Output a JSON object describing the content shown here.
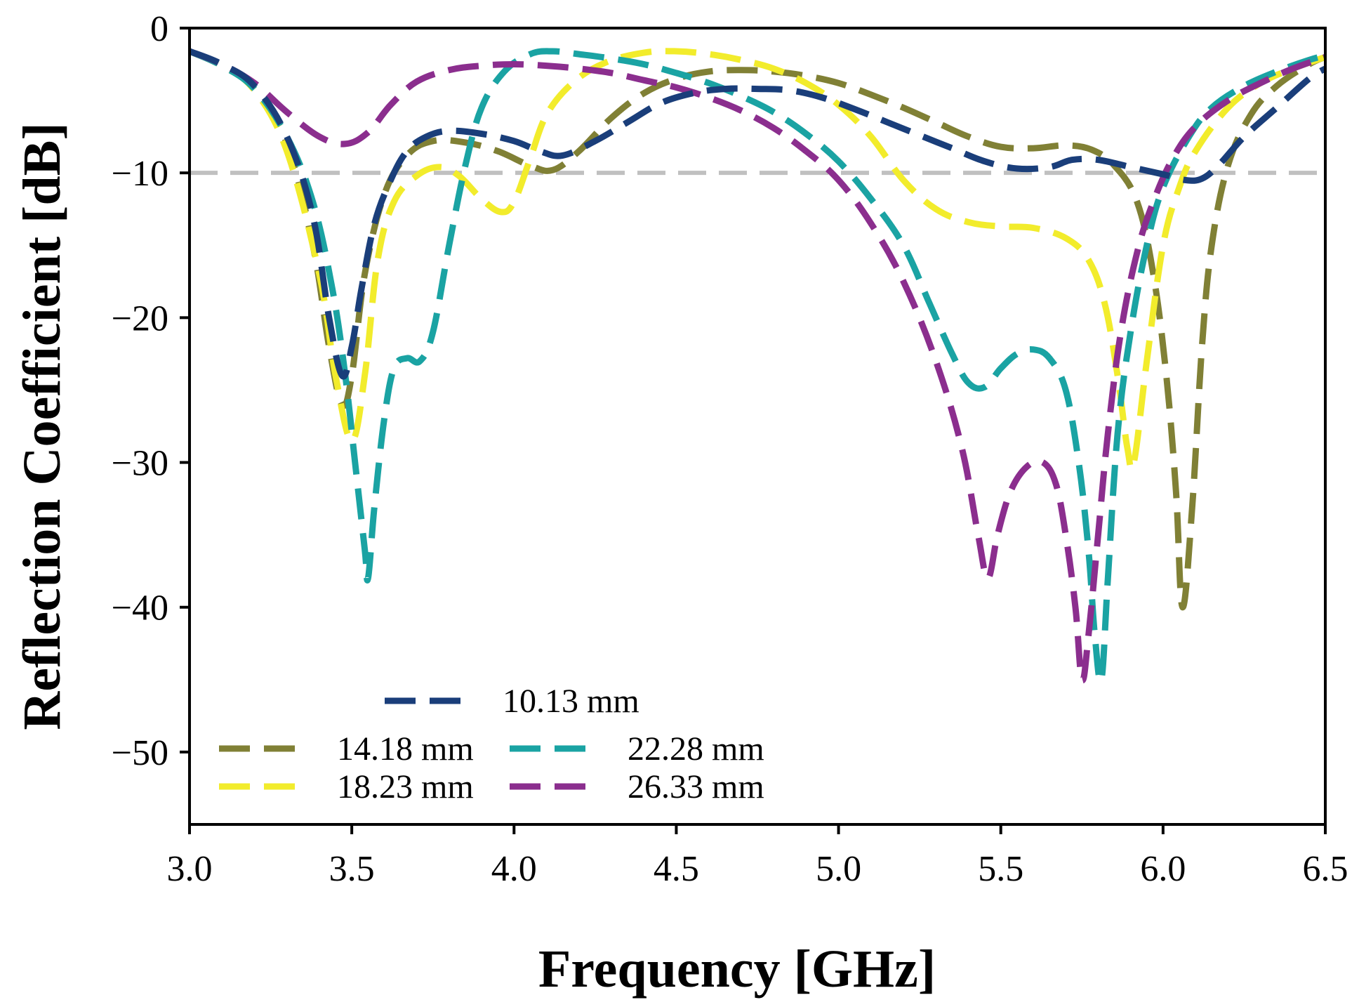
{
  "chart_data": {
    "type": "line",
    "title": "",
    "xlabel": "Frequency [GHz]",
    "ylabel": "Reflection Coefficient [dB]",
    "xlim": [
      3.0,
      6.5
    ],
    "ylim": [
      -55,
      0
    ],
    "x_ticks": [
      3.0,
      3.5,
      4.0,
      4.5,
      5.0,
      5.5,
      6.0,
      6.5
    ],
    "x_tick_labels": [
      "3.0",
      "3.5",
      "4.0",
      "4.5",
      "5.0",
      "5.5",
      "6.0",
      "6.5"
    ],
    "y_ticks": [
      0,
      -10,
      -20,
      -30,
      -40,
      -50
    ],
    "y_tick_labels": [
      "0",
      "−10",
      "−20",
      "−30",
      "−40",
      "−50"
    ],
    "grid": false,
    "legend_position": "bottom-left",
    "reference_line": {
      "y": -10,
      "color": "#c0c0c0",
      "style": "dashed"
    },
    "series": [
      {
        "name": "10.13 mm",
        "color": "#1a3e7a",
        "points": [
          [
            3.0,
            -1.6
          ],
          [
            3.1,
            -2.5
          ],
          [
            3.2,
            -4
          ],
          [
            3.3,
            -7.5
          ],
          [
            3.38,
            -13
          ],
          [
            3.43,
            -20
          ],
          [
            3.47,
            -24
          ],
          [
            3.5,
            -22
          ],
          [
            3.53,
            -18
          ],
          [
            3.57,
            -13.5
          ],
          [
            3.62,
            -10.5
          ],
          [
            3.67,
            -8.5
          ],
          [
            3.73,
            -7.5
          ],
          [
            3.8,
            -7.1
          ],
          [
            3.9,
            -7.3
          ],
          [
            4.0,
            -7.8
          ],
          [
            4.08,
            -8.5
          ],
          [
            4.15,
            -8.8
          ],
          [
            4.25,
            -7.8
          ],
          [
            4.35,
            -6.5
          ],
          [
            4.45,
            -5.2
          ],
          [
            4.55,
            -4.5
          ],
          [
            4.65,
            -4.2
          ],
          [
            4.75,
            -4.2
          ],
          [
            4.85,
            -4.3
          ],
          [
            4.95,
            -4.8
          ],
          [
            5.05,
            -5.6
          ],
          [
            5.15,
            -6.5
          ],
          [
            5.25,
            -7.4
          ],
          [
            5.35,
            -8.3
          ],
          [
            5.45,
            -9.2
          ],
          [
            5.55,
            -9.7
          ],
          [
            5.65,
            -9.6
          ],
          [
            5.72,
            -9.1
          ],
          [
            5.8,
            -9.1
          ],
          [
            5.9,
            -9.6
          ],
          [
            6.0,
            -10.1
          ],
          [
            6.07,
            -10.5
          ],
          [
            6.12,
            -10.4
          ],
          [
            6.17,
            -9.5
          ],
          [
            6.25,
            -7.5
          ],
          [
            6.35,
            -5.5
          ],
          [
            6.45,
            -3.5
          ],
          [
            6.5,
            -2.8
          ]
        ]
      },
      {
        "name": "14.18 mm",
        "color": "#808035",
        "points": [
          [
            3.0,
            -1.6
          ],
          [
            3.1,
            -2.6
          ],
          [
            3.2,
            -4.2
          ],
          [
            3.3,
            -8
          ],
          [
            3.38,
            -15
          ],
          [
            3.43,
            -22
          ],
          [
            3.47,
            -26
          ],
          [
            3.5,
            -24
          ],
          [
            3.54,
            -17
          ],
          [
            3.6,
            -11.5
          ],
          [
            3.67,
            -8.8
          ],
          [
            3.75,
            -7.8
          ],
          [
            3.85,
            -7.9
          ],
          [
            3.95,
            -8.5
          ],
          [
            4.05,
            -9.5
          ],
          [
            4.12,
            -9.8
          ],
          [
            4.2,
            -8.5
          ],
          [
            4.3,
            -6.2
          ],
          [
            4.4,
            -4.5
          ],
          [
            4.5,
            -3.5
          ],
          [
            4.6,
            -3.0
          ],
          [
            4.7,
            -2.9
          ],
          [
            4.8,
            -3.0
          ],
          [
            4.9,
            -3.3
          ],
          [
            5.0,
            -3.8
          ],
          [
            5.1,
            -4.6
          ],
          [
            5.2,
            -5.5
          ],
          [
            5.3,
            -6.5
          ],
          [
            5.4,
            -7.5
          ],
          [
            5.5,
            -8.2
          ],
          [
            5.6,
            -8.3
          ],
          [
            5.7,
            -8.1
          ],
          [
            5.78,
            -8.4
          ],
          [
            5.85,
            -9.5
          ],
          [
            5.92,
            -12
          ],
          [
            5.97,
            -17
          ],
          [
            6.01,
            -24
          ],
          [
            6.04,
            -32
          ],
          [
            6.06,
            -40
          ],
          [
            6.09,
            -33
          ],
          [
            6.12,
            -22
          ],
          [
            6.15,
            -15
          ],
          [
            6.2,
            -9.5
          ],
          [
            6.27,
            -6
          ],
          [
            6.35,
            -4
          ],
          [
            6.45,
            -2.5
          ],
          [
            6.5,
            -2.0
          ]
        ]
      },
      {
        "name": "18.23 mm",
        "color": "#f2ec2c",
        "points": [
          [
            3.0,
            -1.6
          ],
          [
            3.1,
            -2.6
          ],
          [
            3.2,
            -4.3
          ],
          [
            3.3,
            -8.5
          ],
          [
            3.4,
            -17
          ],
          [
            3.45,
            -24
          ],
          [
            3.5,
            -28.5
          ],
          [
            3.54,
            -24
          ],
          [
            3.58,
            -16
          ],
          [
            3.63,
            -12
          ],
          [
            3.7,
            -10.2
          ],
          [
            3.77,
            -9.6
          ],
          [
            3.83,
            -10.2
          ],
          [
            3.9,
            -11.8
          ],
          [
            3.96,
            -12.7
          ],
          [
            4.0,
            -12
          ],
          [
            4.05,
            -9
          ],
          [
            4.1,
            -6
          ],
          [
            4.18,
            -3.8
          ],
          [
            4.28,
            -2.4
          ],
          [
            4.4,
            -1.7
          ],
          [
            4.5,
            -1.6
          ],
          [
            4.6,
            -1.8
          ],
          [
            4.7,
            -2.2
          ],
          [
            4.8,
            -2.8
          ],
          [
            4.9,
            -3.8
          ],
          [
            5.0,
            -5.3
          ],
          [
            5.1,
            -7.5
          ],
          [
            5.2,
            -10.5
          ],
          [
            5.3,
            -12.5
          ],
          [
            5.4,
            -13.4
          ],
          [
            5.5,
            -13.7
          ],
          [
            5.6,
            -13.8
          ],
          [
            5.7,
            -14.5
          ],
          [
            5.77,
            -16
          ],
          [
            5.82,
            -19
          ],
          [
            5.86,
            -24
          ],
          [
            5.89,
            -29
          ],
          [
            5.91,
            -30
          ],
          [
            5.95,
            -23
          ],
          [
            6.0,
            -15
          ],
          [
            6.05,
            -11
          ],
          [
            6.1,
            -8.5
          ],
          [
            6.2,
            -5.5
          ],
          [
            6.3,
            -3.8
          ],
          [
            6.4,
            -2.8
          ],
          [
            6.5,
            -2.0
          ]
        ]
      },
      {
        "name": "22.28 mm",
        "color": "#1aa3a3",
        "points": [
          [
            3.0,
            -1.6
          ],
          [
            3.1,
            -2.6
          ],
          [
            3.2,
            -4.2
          ],
          [
            3.3,
            -7.5
          ],
          [
            3.38,
            -12
          ],
          [
            3.44,
            -18
          ],
          [
            3.48,
            -24
          ],
          [
            3.51,
            -30
          ],
          [
            3.54,
            -36
          ],
          [
            3.55,
            -38
          ],
          [
            3.57,
            -33
          ],
          [
            3.6,
            -27
          ],
          [
            3.63,
            -23.5
          ],
          [
            3.67,
            -22.8
          ],
          [
            3.71,
            -23
          ],
          [
            3.75,
            -21
          ],
          [
            3.8,
            -15
          ],
          [
            3.85,
            -9.5
          ],
          [
            3.9,
            -5.5
          ],
          [
            3.97,
            -3
          ],
          [
            4.05,
            -1.8
          ],
          [
            4.12,
            -1.6
          ],
          [
            4.2,
            -1.8
          ],
          [
            4.3,
            -2.1
          ],
          [
            4.4,
            -2.5
          ],
          [
            4.5,
            -3.1
          ],
          [
            4.6,
            -3.8
          ],
          [
            4.7,
            -4.7
          ],
          [
            4.8,
            -5.8
          ],
          [
            4.9,
            -7.3
          ],
          [
            5.0,
            -9.2
          ],
          [
            5.1,
            -11.8
          ],
          [
            5.2,
            -15
          ],
          [
            5.28,
            -19
          ],
          [
            5.35,
            -22.5
          ],
          [
            5.4,
            -24.5
          ],
          [
            5.45,
            -24.8
          ],
          [
            5.5,
            -23.5
          ],
          [
            5.55,
            -22.5
          ],
          [
            5.6,
            -22.2
          ],
          [
            5.65,
            -22.8
          ],
          [
            5.7,
            -25
          ],
          [
            5.74,
            -30
          ],
          [
            5.77,
            -36
          ],
          [
            5.79,
            -42
          ],
          [
            5.81,
            -45
          ],
          [
            5.83,
            -38
          ],
          [
            5.86,
            -28
          ],
          [
            5.9,
            -21
          ],
          [
            5.95,
            -15
          ],
          [
            6.0,
            -11
          ],
          [
            6.08,
            -7.5
          ],
          [
            6.15,
            -5.5
          ],
          [
            6.25,
            -4
          ],
          [
            6.35,
            -3
          ],
          [
            6.45,
            -2.2
          ],
          [
            6.5,
            -1.9
          ]
        ]
      },
      {
        "name": "26.33 mm",
        "color": "#8b2e8e",
        "points": [
          [
            3.0,
            -1.6
          ],
          [
            3.1,
            -2.5
          ],
          [
            3.2,
            -3.8
          ],
          [
            3.3,
            -5.8
          ],
          [
            3.4,
            -7.5
          ],
          [
            3.48,
            -8.0
          ],
          [
            3.55,
            -7.2
          ],
          [
            3.62,
            -5.3
          ],
          [
            3.7,
            -3.7
          ],
          [
            3.8,
            -2.9
          ],
          [
            3.9,
            -2.6
          ],
          [
            4.0,
            -2.5
          ],
          [
            4.1,
            -2.6
          ],
          [
            4.2,
            -2.8
          ],
          [
            4.3,
            -3.1
          ],
          [
            4.4,
            -3.6
          ],
          [
            4.5,
            -4.1
          ],
          [
            4.6,
            -4.8
          ],
          [
            4.7,
            -5.7
          ],
          [
            4.8,
            -6.9
          ],
          [
            4.9,
            -8.5
          ],
          [
            5.0,
            -10.5
          ],
          [
            5.1,
            -13.5
          ],
          [
            5.2,
            -17.5
          ],
          [
            5.3,
            -23
          ],
          [
            5.38,
            -29
          ],
          [
            5.43,
            -35
          ],
          [
            5.46,
            -38
          ],
          [
            5.49,
            -35
          ],
          [
            5.53,
            -32
          ],
          [
            5.58,
            -30.3
          ],
          [
            5.63,
            -30
          ],
          [
            5.67,
            -31.5
          ],
          [
            5.7,
            -35
          ],
          [
            5.73,
            -40
          ],
          [
            5.75,
            -45
          ],
          [
            5.77,
            -42
          ],
          [
            5.8,
            -35
          ],
          [
            5.83,
            -28
          ],
          [
            5.87,
            -21
          ],
          [
            5.92,
            -15.5
          ],
          [
            5.97,
            -12
          ],
          [
            6.03,
            -9
          ],
          [
            6.1,
            -6.8
          ],
          [
            6.2,
            -5
          ],
          [
            6.3,
            -3.8
          ],
          [
            6.4,
            -2.8
          ],
          [
            6.5,
            -2.0
          ]
        ]
      }
    ],
    "legend": [
      {
        "series": 0,
        "label": "10.13 mm"
      },
      {
        "series": 1,
        "label": "14.18 mm"
      },
      {
        "series": 3,
        "label": "22.28 mm"
      },
      {
        "series": 2,
        "label": "18.23 mm"
      },
      {
        "series": 4,
        "label": "26.33 mm"
      }
    ]
  }
}
